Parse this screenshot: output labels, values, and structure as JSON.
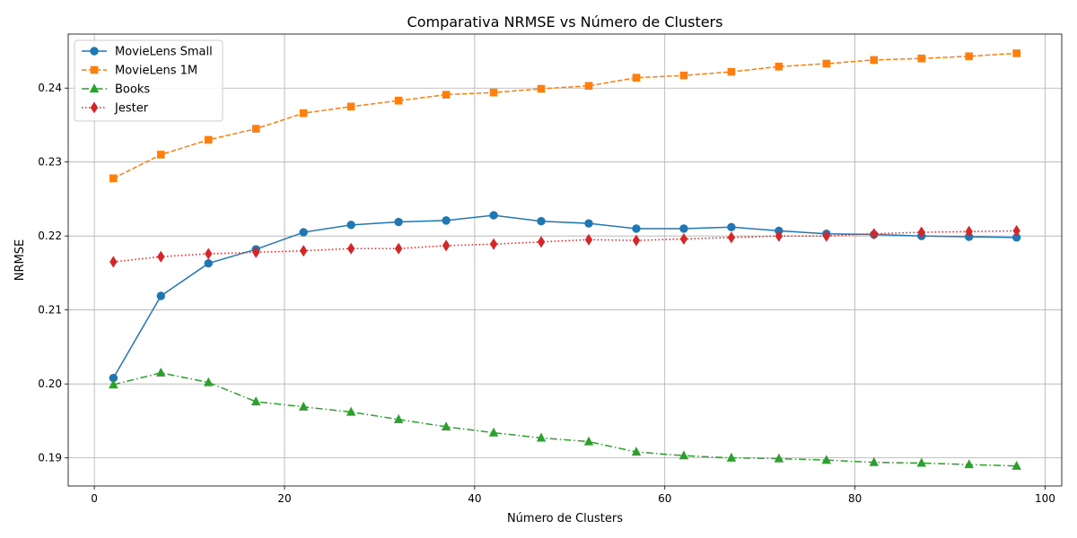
{
  "chart_data": {
    "type": "line",
    "title": "Comparativa NRMSE vs Número de Clusters",
    "xlabel": "Número de Clusters",
    "ylabel": "NRMSE",
    "xlim": [
      -2.75,
      101.75
    ],
    "ylim": [
      0.1862,
      0.2473
    ],
    "xticks": [
      0,
      20,
      40,
      60,
      80,
      100
    ],
    "yticks": [
      0.19,
      0.2,
      0.21,
      0.22,
      0.23,
      0.24
    ],
    "ytick_labels": [
      "0.19",
      "0.20",
      "0.21",
      "0.22",
      "0.23",
      "0.24"
    ],
    "grid": true,
    "legend_position": "top-left",
    "x": [
      2,
      7,
      12,
      17,
      22,
      27,
      32,
      37,
      42,
      47,
      52,
      57,
      62,
      67,
      72,
      77,
      82,
      87,
      92,
      97
    ],
    "series": [
      {
        "name": "MovieLens Small",
        "color": "#1f77b4",
        "line_style": "solid",
        "marker": "circle",
        "values": [
          0.2008,
          0.2119,
          0.2163,
          0.2182,
          0.2205,
          0.2215,
          0.2219,
          0.2221,
          0.2228,
          0.222,
          0.2217,
          0.221,
          0.221,
          0.2212,
          0.2207,
          0.2203,
          0.2202,
          0.22,
          0.2199,
          0.2198
        ]
      },
      {
        "name": "MovieLens 1M",
        "color": "#ff7f0e",
        "line_style": "dashed",
        "marker": "square",
        "values": [
          0.2278,
          0.231,
          0.233,
          0.2345,
          0.2366,
          0.2375,
          0.2383,
          0.2391,
          0.2394,
          0.2399,
          0.2403,
          0.2414,
          0.2417,
          0.2422,
          0.2429,
          0.2433,
          0.2438,
          0.244,
          0.2443,
          0.2447
        ]
      },
      {
        "name": "Books",
        "color": "#2ca02c",
        "line_style": "dashdot",
        "marker": "triangle",
        "values": [
          0.1999,
          0.2015,
          0.2002,
          0.1976,
          0.1969,
          0.1962,
          0.1952,
          0.1942,
          0.1934,
          0.1927,
          0.1922,
          0.1908,
          0.1903,
          0.19,
          0.1899,
          0.1897,
          0.1894,
          0.1893,
          0.1891,
          0.1889
        ]
      },
      {
        "name": "Jester",
        "color": "#d62728",
        "line_style": "dotted",
        "marker": "diamond",
        "values": [
          0.2165,
          0.2172,
          0.2176,
          0.2178,
          0.218,
          0.2183,
          0.2183,
          0.2187,
          0.2189,
          0.2192,
          0.2195,
          0.2194,
          0.2196,
          0.2198,
          0.22,
          0.22,
          0.2203,
          0.2205,
          0.2206,
          0.2207
        ]
      }
    ]
  }
}
